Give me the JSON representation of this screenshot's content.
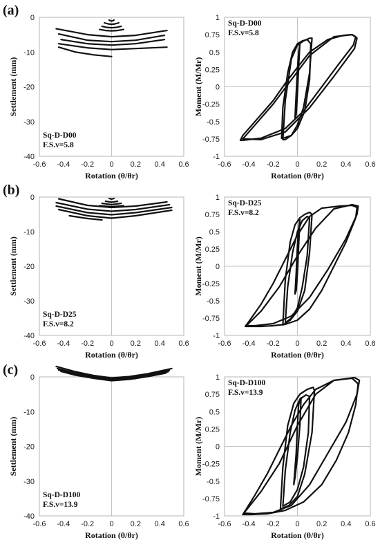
{
  "chart_data": [
    {
      "panel_label": "(a)",
      "type": "line",
      "annotation": [
        "Sq-D-D00",
        "F.S.v=5.8"
      ],
      "xlabel": "Rotation (θ/θr)",
      "ylabel": "Settlement (mm)",
      "xlim": [
        -0.6,
        0.6
      ],
      "ylim": [
        -40,
        0
      ],
      "x_ticks": [
        "-0.6",
        "-0.4",
        "-0.2",
        "0",
        "0.2",
        "0.4",
        "0.6"
      ],
      "y_ticks": [
        "0",
        "-10",
        "-20",
        "-30",
        "-40"
      ],
      "series": [
        {
          "x": [
            -0.02,
            -0.01,
            0.0,
            0.01,
            0.02
          ],
          "y": [
            -0.8,
            -1.0,
            -1.1,
            -1.0,
            -0.8
          ]
        },
        {
          "x": [
            -0.06,
            -0.03,
            0.0,
            0.03,
            0.06
          ],
          "y": [
            -1.6,
            -1.9,
            -2.0,
            -1.9,
            -1.6
          ]
        },
        {
          "x": [
            -0.08,
            -0.04,
            0.0,
            0.04,
            0.08
          ],
          "y": [
            -2.6,
            -2.9,
            -3.0,
            -2.9,
            -2.6
          ]
        },
        {
          "x": [
            -0.1,
            -0.05,
            0.0,
            0.05,
            0.1
          ],
          "y": [
            -3.5,
            -3.8,
            -3.9,
            -3.8,
            -3.5
          ]
        },
        {
          "x": [
            -0.46,
            -0.2,
            0.0,
            0.2,
            0.46
          ],
          "y": [
            -3.3,
            -5.0,
            -5.6,
            -5.2,
            -3.8
          ]
        },
        {
          "x": [
            -0.44,
            -0.2,
            0.0,
            0.2,
            0.44
          ],
          "y": [
            -4.8,
            -6.6,
            -7.0,
            -6.6,
            -5.2
          ]
        },
        {
          "x": [
            -0.42,
            -0.2,
            0.0,
            0.2,
            0.44
          ],
          "y": [
            -6.4,
            -7.6,
            -8.0,
            -7.6,
            -6.4
          ]
        },
        {
          "x": [
            -0.44,
            -0.2,
            0.0,
            0.2,
            0.46
          ],
          "y": [
            -7.6,
            -8.8,
            -9.3,
            -9.0,
            -8.6
          ]
        },
        {
          "x": [
            -0.44,
            -0.3,
            -0.15,
            0.0
          ],
          "y": [
            -8.6,
            -10.0,
            -10.8,
            -11.3
          ]
        }
      ]
    },
    {
      "type": "line",
      "annotation": [
        "Sq-D-D00",
        "F.S.v=5.8"
      ],
      "xlabel": "Rotation (θ/θr)",
      "ylabel": "Moment (M/Mr)",
      "xlim": [
        -0.6,
        0.6
      ],
      "ylim": [
        -1,
        1
      ],
      "x_ticks": [
        "-0.6",
        "-0.4",
        "-0.2",
        "0",
        "0.2",
        "0.4",
        "0.6"
      ],
      "y_ticks": [
        "1",
        "0.75",
        "0.5",
        "0.25",
        "0",
        "-0.25",
        "-0.5",
        "-0.75",
        "-1"
      ],
      "series": [
        {
          "x": [
            -0.47,
            -0.45,
            -0.35,
            -0.2,
            -0.1,
            0.0,
            0.1,
            0.25,
            0.38,
            0.45,
            0.48,
            0.46,
            0.35,
            0.2,
            0.05,
            -0.1,
            -0.3,
            -0.45,
            -0.47
          ],
          "y": [
            -0.77,
            -0.7,
            -0.5,
            -0.2,
            0.05,
            0.28,
            0.5,
            0.68,
            0.74,
            0.75,
            0.72,
            0.6,
            0.35,
            0.0,
            -0.35,
            -0.6,
            -0.74,
            -0.77,
            -0.77
          ]
        },
        {
          "x": [
            -0.45,
            -0.35,
            -0.2,
            -0.05,
            0.1,
            0.3,
            0.45,
            0.49,
            0.47,
            0.3,
            0.1,
            -0.1,
            -0.3,
            -0.45
          ],
          "y": [
            -0.75,
            -0.55,
            -0.25,
            0.1,
            0.45,
            0.72,
            0.75,
            0.7,
            0.55,
            0.15,
            -0.3,
            -0.65,
            -0.76,
            -0.75
          ]
        },
        {
          "x": [
            -0.12,
            -0.1,
            -0.05,
            0.0,
            0.05,
            0.1,
            0.12,
            0.1,
            0.05,
            0.0,
            -0.05,
            -0.1,
            -0.12
          ],
          "y": [
            -0.76,
            -0.2,
            0.4,
            0.6,
            0.66,
            0.7,
            0.7,
            0.2,
            -0.3,
            -0.55,
            -0.7,
            -0.76,
            -0.76
          ]
        },
        {
          "x": [
            -0.13,
            -0.12,
            -0.08,
            -0.04,
            0.0,
            0.04,
            0.08,
            0.11,
            0.1,
            0.06,
            0.0,
            -0.05,
            -0.1,
            -0.13
          ],
          "y": [
            -0.74,
            -0.3,
            0.2,
            0.5,
            0.62,
            0.66,
            0.68,
            0.62,
            0.1,
            -0.35,
            -0.6,
            -0.7,
            -0.73,
            -0.74
          ]
        },
        {
          "x": [
            -0.02,
            -0.01,
            0.0,
            0.01,
            0.02,
            0.01,
            0.0,
            -0.01,
            -0.02
          ],
          "y": [
            -0.45,
            -0.1,
            0.25,
            0.5,
            0.62,
            0.3,
            -0.1,
            -0.4,
            -0.45
          ]
        }
      ]
    },
    {
      "panel_label": "(b)",
      "type": "line",
      "annotation": [
        "Sq-D-D25",
        "F.S.v=8.2"
      ],
      "xlabel": "Rotation (θ/θr)",
      "ylabel": "Settlement (mm)",
      "xlim": [
        -0.6,
        0.6
      ],
      "ylim": [
        -40,
        0
      ],
      "x_ticks": [
        "-0.6",
        "-0.4",
        "-0.2",
        "0",
        "0.2",
        "0.4",
        "0.6"
      ],
      "y_ticks": [
        "0",
        "-10",
        "-20",
        "-30",
        "-40"
      ],
      "series": [
        {
          "x": [
            -0.02,
            0.0,
            0.02
          ],
          "y": [
            -0.4,
            -0.6,
            -0.4
          ]
        },
        {
          "x": [
            -0.05,
            0.0,
            0.05
          ],
          "y": [
            -1.2,
            -1.5,
            -1.2
          ]
        },
        {
          "x": [
            -0.08,
            0.0,
            0.08
          ],
          "y": [
            -1.8,
            -2.2,
            -1.8
          ]
        },
        {
          "x": [
            -0.1,
            0.0,
            0.1
          ],
          "y": [
            -2.5,
            -2.8,
            -2.5
          ]
        },
        {
          "x": [
            -0.44,
            -0.2,
            0.0,
            0.2,
            0.46
          ],
          "y": [
            -0.5,
            -2.4,
            -3.0,
            -2.6,
            -1.4
          ]
        },
        {
          "x": [
            -0.46,
            -0.2,
            0.0,
            0.2,
            0.48
          ],
          "y": [
            -1.6,
            -3.5,
            -4.1,
            -3.6,
            -2.2
          ]
        },
        {
          "x": [
            -0.46,
            -0.2,
            0.0,
            0.2,
            0.5
          ],
          "y": [
            -2.6,
            -4.5,
            -5.1,
            -4.5,
            -3.0
          ]
        },
        {
          "x": [
            -0.44,
            -0.2,
            0.0,
            0.2,
            0.5
          ],
          "y": [
            -3.6,
            -5.4,
            -6.1,
            -5.4,
            -3.8
          ]
        },
        {
          "x": [
            -0.35,
            -0.2,
            -0.08
          ],
          "y": [
            -5.4,
            -6.2,
            -6.6
          ]
        }
      ]
    },
    {
      "type": "line",
      "annotation": [
        "Sq-D-D25",
        "F.S.v=8.2"
      ],
      "xlabel": "Rotation (θ/θr)",
      "ylabel": "Moment (M/Mr)",
      "xlim": [
        -0.6,
        0.6
      ],
      "ylim": [
        -1,
        1
      ],
      "x_ticks": [
        "-0.6",
        "-0.4",
        "-0.2",
        "0",
        "0.2",
        "0.4",
        "0.6"
      ],
      "y_ticks": [
        "1",
        "0.75",
        "0.5",
        "0.25",
        "0",
        "-0.25",
        "-0.5",
        "-0.75",
        "-1"
      ],
      "series": [
        {
          "x": [
            -0.43,
            -0.4,
            -0.3,
            -0.2,
            -0.1,
            0.0,
            0.1,
            0.2,
            0.35,
            0.45,
            0.49,
            0.48,
            0.4,
            0.3,
            0.2,
            0.1,
            0.0,
            -0.1,
            -0.2,
            -0.3,
            -0.43
          ],
          "y": [
            -0.87,
            -0.8,
            -0.55,
            -0.25,
            0.1,
            0.45,
            0.72,
            0.84,
            0.87,
            0.88,
            0.85,
            0.7,
            0.35,
            0.0,
            -0.35,
            -0.62,
            -0.78,
            -0.84,
            -0.86,
            -0.87,
            -0.87
          ]
        },
        {
          "x": [
            -0.42,
            -0.3,
            -0.15,
            0.0,
            0.15,
            0.3,
            0.45,
            0.5,
            0.49,
            0.4,
            0.25,
            0.1,
            -0.05,
            -0.2,
            -0.35,
            -0.42
          ],
          "y": [
            -0.86,
            -0.65,
            -0.3,
            0.15,
            0.55,
            0.83,
            0.89,
            0.87,
            0.75,
            0.4,
            -0.05,
            -0.45,
            -0.72,
            -0.83,
            -0.86,
            -0.86
          ]
        },
        {
          "x": [
            -0.12,
            -0.1,
            -0.06,
            -0.02,
            0.02,
            0.06,
            0.1,
            0.12,
            0.1,
            0.06,
            0.0,
            -0.06,
            -0.12
          ],
          "y": [
            -0.85,
            -0.2,
            0.35,
            0.6,
            0.7,
            0.75,
            0.78,
            0.75,
            0.2,
            -0.35,
            -0.65,
            -0.78,
            -0.85
          ]
        },
        {
          "x": [
            -0.1,
            -0.08,
            -0.04,
            0.0,
            0.04,
            0.08,
            0.1,
            0.08,
            0.04,
            0.0,
            -0.05,
            -0.1
          ],
          "y": [
            -0.82,
            -0.3,
            0.2,
            0.5,
            0.66,
            0.72,
            0.7,
            0.15,
            -0.3,
            -0.6,
            -0.75,
            -0.82
          ]
        },
        {
          "x": [
            -0.02,
            -0.01,
            0.0,
            0.01,
            0.02,
            0.01,
            0.0,
            -0.01,
            -0.02
          ],
          "y": [
            -0.4,
            -0.1,
            0.3,
            0.55,
            0.68,
            0.3,
            -0.1,
            -0.35,
            -0.4
          ]
        }
      ]
    },
    {
      "panel_label": "(c)",
      "type": "line",
      "annotation": [
        "Sq-D-D100",
        "F.S.v=13.9"
      ],
      "xlabel": "Rotation (θ/θr)",
      "ylabel": "Settlement (mm)",
      "xlim": [
        -0.6,
        0.6
      ],
      "ylim": [
        -40,
        0
      ],
      "x_ticks": [
        "-0.6",
        "-0.4",
        "-0.2",
        "0",
        "0.2",
        "0.4",
        "0.6"
      ],
      "y_ticks": [
        "0",
        "-10",
        "-20",
        "-30",
        "-40"
      ],
      "series": [
        {
          "x": [
            -0.46,
            -0.3,
            -0.15,
            0.0,
            0.15,
            0.3,
            0.5
          ],
          "y": [
            3.0,
            1.5,
            0.4,
            -0.3,
            0.1,
            0.9,
            2.4
          ]
        },
        {
          "x": [
            -0.45,
            -0.3,
            -0.15,
            0.0,
            0.15,
            0.3,
            0.48
          ],
          "y": [
            2.4,
            1.1,
            0.1,
            -0.6,
            -0.2,
            0.6,
            1.9
          ]
        },
        {
          "x": [
            -0.44,
            -0.3,
            -0.15,
            0.0,
            0.15,
            0.3,
            0.47
          ],
          "y": [
            2.0,
            0.8,
            -0.2,
            -0.9,
            -0.4,
            0.4,
            1.5
          ]
        },
        {
          "x": [
            -0.42,
            -0.3,
            -0.15,
            0.0,
            0.15,
            0.3,
            0.45
          ],
          "y": [
            1.6,
            0.5,
            -0.4,
            -1.1,
            -0.7,
            0.1,
            1.1
          ]
        },
        {
          "x": [
            0.0,
            0.1,
            0.2
          ],
          "y": [
            -0.5,
            -0.2,
            -0.5
          ]
        }
      ]
    },
    {
      "type": "line",
      "annotation": [
        "Sq-D-D100",
        "F.S.v=13.9"
      ],
      "xlabel": "Rotation (θ/θr)",
      "ylabel": "Moment (M/Mr)",
      "xlim": [
        -0.6,
        0.6
      ],
      "ylim": [
        -1,
        1
      ],
      "x_ticks": [
        "-0.6",
        "-0.4",
        "-0.2",
        "0",
        "0.2",
        "0.4",
        "0.6"
      ],
      "y_ticks": [
        "1",
        "0.75",
        "0.5",
        "0.25",
        "0",
        "-0.25",
        "-0.5",
        "-0.75",
        "-1"
      ],
      "series": [
        {
          "x": [
            -0.45,
            -0.42,
            -0.35,
            -0.25,
            -0.15,
            -0.05,
            0.05,
            0.15,
            0.3,
            0.45,
            0.5,
            0.48,
            0.42,
            0.32,
            0.2,
            0.05,
            -0.1,
            -0.25,
            -0.38,
            -0.45
          ],
          "y": [
            -0.98,
            -0.9,
            -0.7,
            -0.4,
            -0.05,
            0.3,
            0.6,
            0.82,
            0.95,
            0.98,
            0.9,
            0.6,
            0.2,
            -0.2,
            -0.55,
            -0.8,
            -0.92,
            -0.97,
            -0.98,
            -0.98
          ]
        },
        {
          "x": [
            -0.44,
            -0.3,
            -0.15,
            0.0,
            0.15,
            0.3,
            0.47,
            0.51,
            0.49,
            0.4,
            0.25,
            0.1,
            -0.05,
            -0.2,
            -0.35,
            -0.44
          ],
          "y": [
            -0.96,
            -0.65,
            -0.25,
            0.3,
            0.75,
            0.95,
            0.99,
            0.95,
            0.75,
            0.35,
            -0.1,
            -0.55,
            -0.85,
            -0.95,
            -0.97,
            -0.96
          ]
        },
        {
          "x": [
            -0.14,
            -0.12,
            -0.08,
            -0.03,
            0.02,
            0.08,
            0.13,
            0.14,
            0.12,
            0.06,
            0.0,
            -0.07,
            -0.14
          ],
          "y": [
            -0.9,
            -0.3,
            0.3,
            0.62,
            0.75,
            0.82,
            0.85,
            0.8,
            0.2,
            -0.4,
            -0.72,
            -0.85,
            -0.9
          ]
        },
        {
          "x": [
            -0.12,
            -0.1,
            -0.06,
            -0.02,
            0.02,
            0.07,
            0.1,
            0.09,
            0.05,
            0.0,
            -0.06,
            -0.12
          ],
          "y": [
            -0.86,
            -0.35,
            0.2,
            0.52,
            0.68,
            0.74,
            0.72,
            0.2,
            -0.3,
            -0.62,
            -0.8,
            -0.86
          ]
        },
        {
          "x": [
            -0.03,
            -0.01,
            0.0,
            0.01,
            0.03,
            0.02,
            0.0,
            -0.02,
            -0.03
          ],
          "y": [
            -0.55,
            -0.1,
            0.3,
            0.6,
            0.7,
            0.3,
            -0.15,
            -0.45,
            -0.55
          ]
        }
      ]
    }
  ]
}
